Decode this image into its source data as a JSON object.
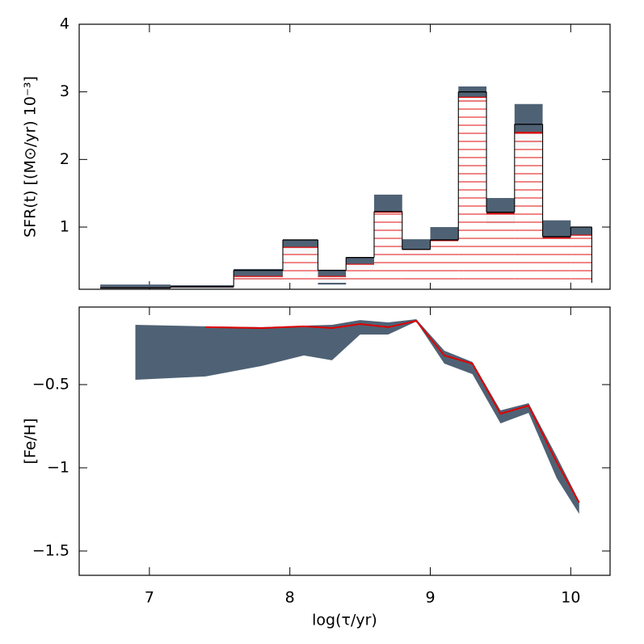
{
  "chart_data": [
    {
      "type": "histogram",
      "y_label": "SFR(t)  [(M⊙/yr) 10⁻³]",
      "bins": [
        6.65,
        7.15,
        7.6,
        7.95,
        8.2,
        8.4,
        8.6,
        8.8,
        9.0,
        9.2,
        9.4,
        9.6,
        9.8,
        10.0,
        10.15
      ],
      "values": [
        0.1,
        0.12,
        0.36,
        0.81,
        0.36,
        0.55,
        1.23,
        0.67,
        0.81,
        3.0,
        1.22,
        2.52,
        0.86,
        1.0
      ],
      "range_low": [
        0.09,
        0.1,
        0.22,
        0.6,
        0.15,
        0.37,
        1.23,
        0.66,
        0.78,
        2.85,
        1.05,
        2.2,
        0.82,
        0.85
      ],
      "range_high": [
        0.15,
        0.14,
        0.38,
        0.81,
        0.36,
        0.55,
        1.48,
        0.82,
        1.0,
        3.08,
        1.43,
        2.82,
        1.1,
        1.0
      ],
      "fit_values": [
        0.1,
        0.12,
        0.27,
        0.7,
        0.27,
        0.45,
        1.22,
        0.67,
        0.8,
        2.92,
        1.2,
        2.4,
        0.84,
        0.88
      ],
      "color": "#000000",
      "band_color": "#4f6275",
      "fit_color": "#e00000",
      "xlim": [
        6.5,
        10.28
      ],
      "xticks": [
        7,
        8,
        9,
        10
      ],
      "ylim": [
        0.08,
        4
      ],
      "yticks": [
        1,
        2,
        3,
        4
      ]
    },
    {
      "type": "band-line",
      "x_label": "log(τ/yr)",
      "y_label": "[Fe/H]",
      "x": [
        6.9,
        7.4,
        7.8,
        8.1,
        8.3,
        8.5,
        8.7,
        8.9,
        9.1,
        9.3,
        9.5,
        9.7,
        9.9,
        10.06
      ],
      "high": [
        -0.141,
        -0.15,
        -0.155,
        -0.146,
        -0.141,
        -0.112,
        -0.126,
        -0.107,
        -0.296,
        -0.364,
        -0.655,
        -0.612,
        -0.932,
        -1.2
      ],
      "low": [
        -0.471,
        -0.451,
        -0.388,
        -0.325,
        -0.354,
        -0.199,
        -0.199,
        -0.121,
        -0.374,
        -0.437,
        -0.733,
        -0.67,
        -1.063,
        -1.277
      ],
      "values": [
        null,
        -0.155,
        -0.16,
        -0.15,
        -0.16,
        -0.136,
        -0.155,
        -0.117,
        -0.325,
        -0.374,
        -0.675,
        -0.626,
        -0.966,
        -1.209
      ],
      "band_color": "#4f6275",
      "color": "#e00000",
      "xlim": [
        6.5,
        10.28
      ],
      "xticks": [
        7,
        8,
        9,
        10
      ],
      "ylim": [
        -1.646,
        -0.034
      ],
      "yticks": [
        {
          "value": -0.5,
          "label": "−0.5"
        },
        {
          "value": -1,
          "label": "−1"
        },
        {
          "value": -1.5,
          "label": "−1.5"
        }
      ]
    }
  ]
}
